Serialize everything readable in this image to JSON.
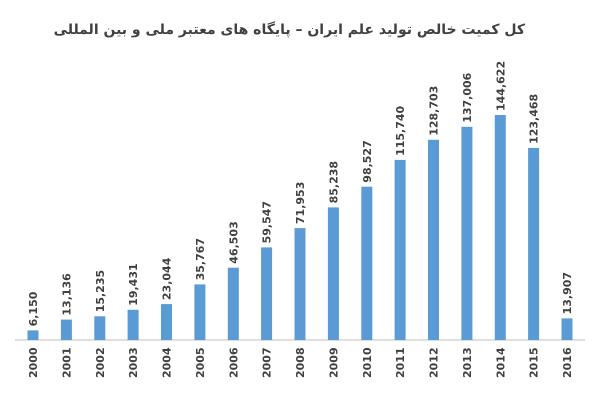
{
  "chart_data": {
    "type": "bar",
    "title": "کل کمیت خالص تولید علم ایران – پایگاه های معتبر ملی و بین المللی",
    "categories": [
      "2000",
      "2001",
      "2002",
      "2003",
      "2004",
      "2005",
      "2006",
      "2007",
      "2008",
      "2009",
      "2010",
      "2011",
      "2012",
      "2013",
      "2014",
      "2015",
      "2016"
    ],
    "values": [
      6150,
      13136,
      15235,
      19431,
      23044,
      35767,
      46503,
      59547,
      71953,
      85238,
      98527,
      115740,
      128703,
      137006,
      144622,
      123468,
      13907
    ],
    "value_labels": [
      "6,150",
      "13,136",
      "15,235",
      "19,431",
      "23,044",
      "35,767",
      "46,503",
      "59,547",
      "71,953",
      "85,238",
      "98,527",
      "115,740",
      "128,703",
      "137,006",
      "144,622",
      "123,468",
      "13,907"
    ],
    "xlabel": "",
    "ylabel": "",
    "ylim": [
      0,
      150000
    ],
    "grid": false,
    "legend": "none",
    "bar_color": "#5b9bd5",
    "text_color": "#404040"
  }
}
